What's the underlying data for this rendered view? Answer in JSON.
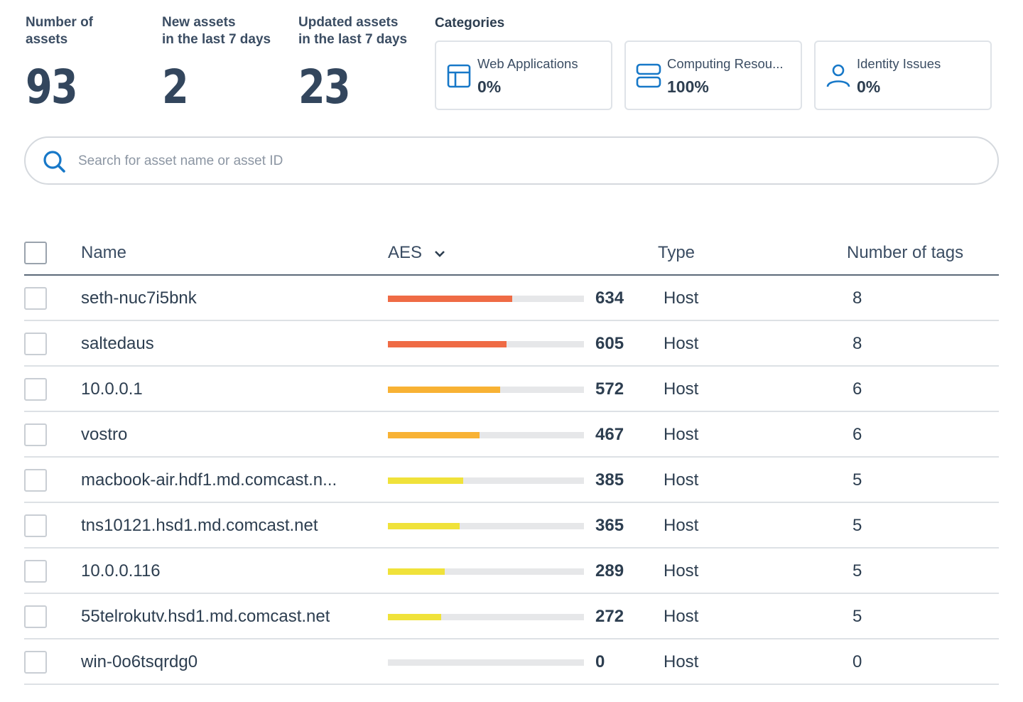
{
  "stats": [
    {
      "label": "Number of\nassets",
      "value": "93"
    },
    {
      "label": "New assets\nin the last 7 days",
      "value": "2"
    },
    {
      "label": "Updated assets\nin the last 7 days",
      "value": "23"
    }
  ],
  "categories": {
    "title": "Categories",
    "items": [
      {
        "name": "Web Applications",
        "value": "0%",
        "icon": "layout-icon"
      },
      {
        "name": "Computing Resou...",
        "value": "100%",
        "icon": "server-icon"
      },
      {
        "name": "Identity Issues",
        "value": "0%",
        "icon": "user-icon"
      }
    ]
  },
  "search": {
    "placeholder": "Search for asset name or asset ID"
  },
  "table": {
    "headers": {
      "name": "Name",
      "aes": "AES",
      "type": "Type",
      "tags": "Number of tags"
    },
    "aes_max": 1000,
    "rows": [
      {
        "name": "seth-nuc7i5bnk",
        "aes": "634",
        "aes_value": 634,
        "color": "#ef6b45",
        "type": "Host",
        "tags": "8"
      },
      {
        "name": "saltedaus",
        "aes": "605",
        "aes_value": 605,
        "color": "#ef6b45",
        "type": "Host",
        "tags": "8"
      },
      {
        "name": "10.0.0.1",
        "aes": "572",
        "aes_value": 572,
        "color": "#f8b234",
        "type": "Host",
        "tags": "6"
      },
      {
        "name": "vostro",
        "aes": "467",
        "aes_value": 467,
        "color": "#f8b234",
        "type": "Host",
        "tags": "6"
      },
      {
        "name": "macbook-air.hdf1.md.comcast.n...",
        "aes": "385",
        "aes_value": 385,
        "color": "#f0e23a",
        "type": "Host",
        "tags": "5"
      },
      {
        "name": "tns10121.hsd1.md.comcast.net",
        "aes": "365",
        "aes_value": 365,
        "color": "#f0e23a",
        "type": "Host",
        "tags": "5"
      },
      {
        "name": "10.0.0.116",
        "aes": "289",
        "aes_value": 289,
        "color": "#f0e23a",
        "type": "Host",
        "tags": "5"
      },
      {
        "name": "55telrokutv.hsd1.md.comcast.net",
        "aes": "272",
        "aes_value": 272,
        "color": "#f0e23a",
        "type": "Host",
        "tags": "5"
      },
      {
        "name": "win-0o6tsqrdg0",
        "aes": "0",
        "aes_value": 0,
        "color": "#e6e7e9",
        "type": "Host",
        "tags": "0"
      }
    ]
  },
  "colors": {
    "accent": "#1778c8",
    "text": "#2d3e50"
  }
}
